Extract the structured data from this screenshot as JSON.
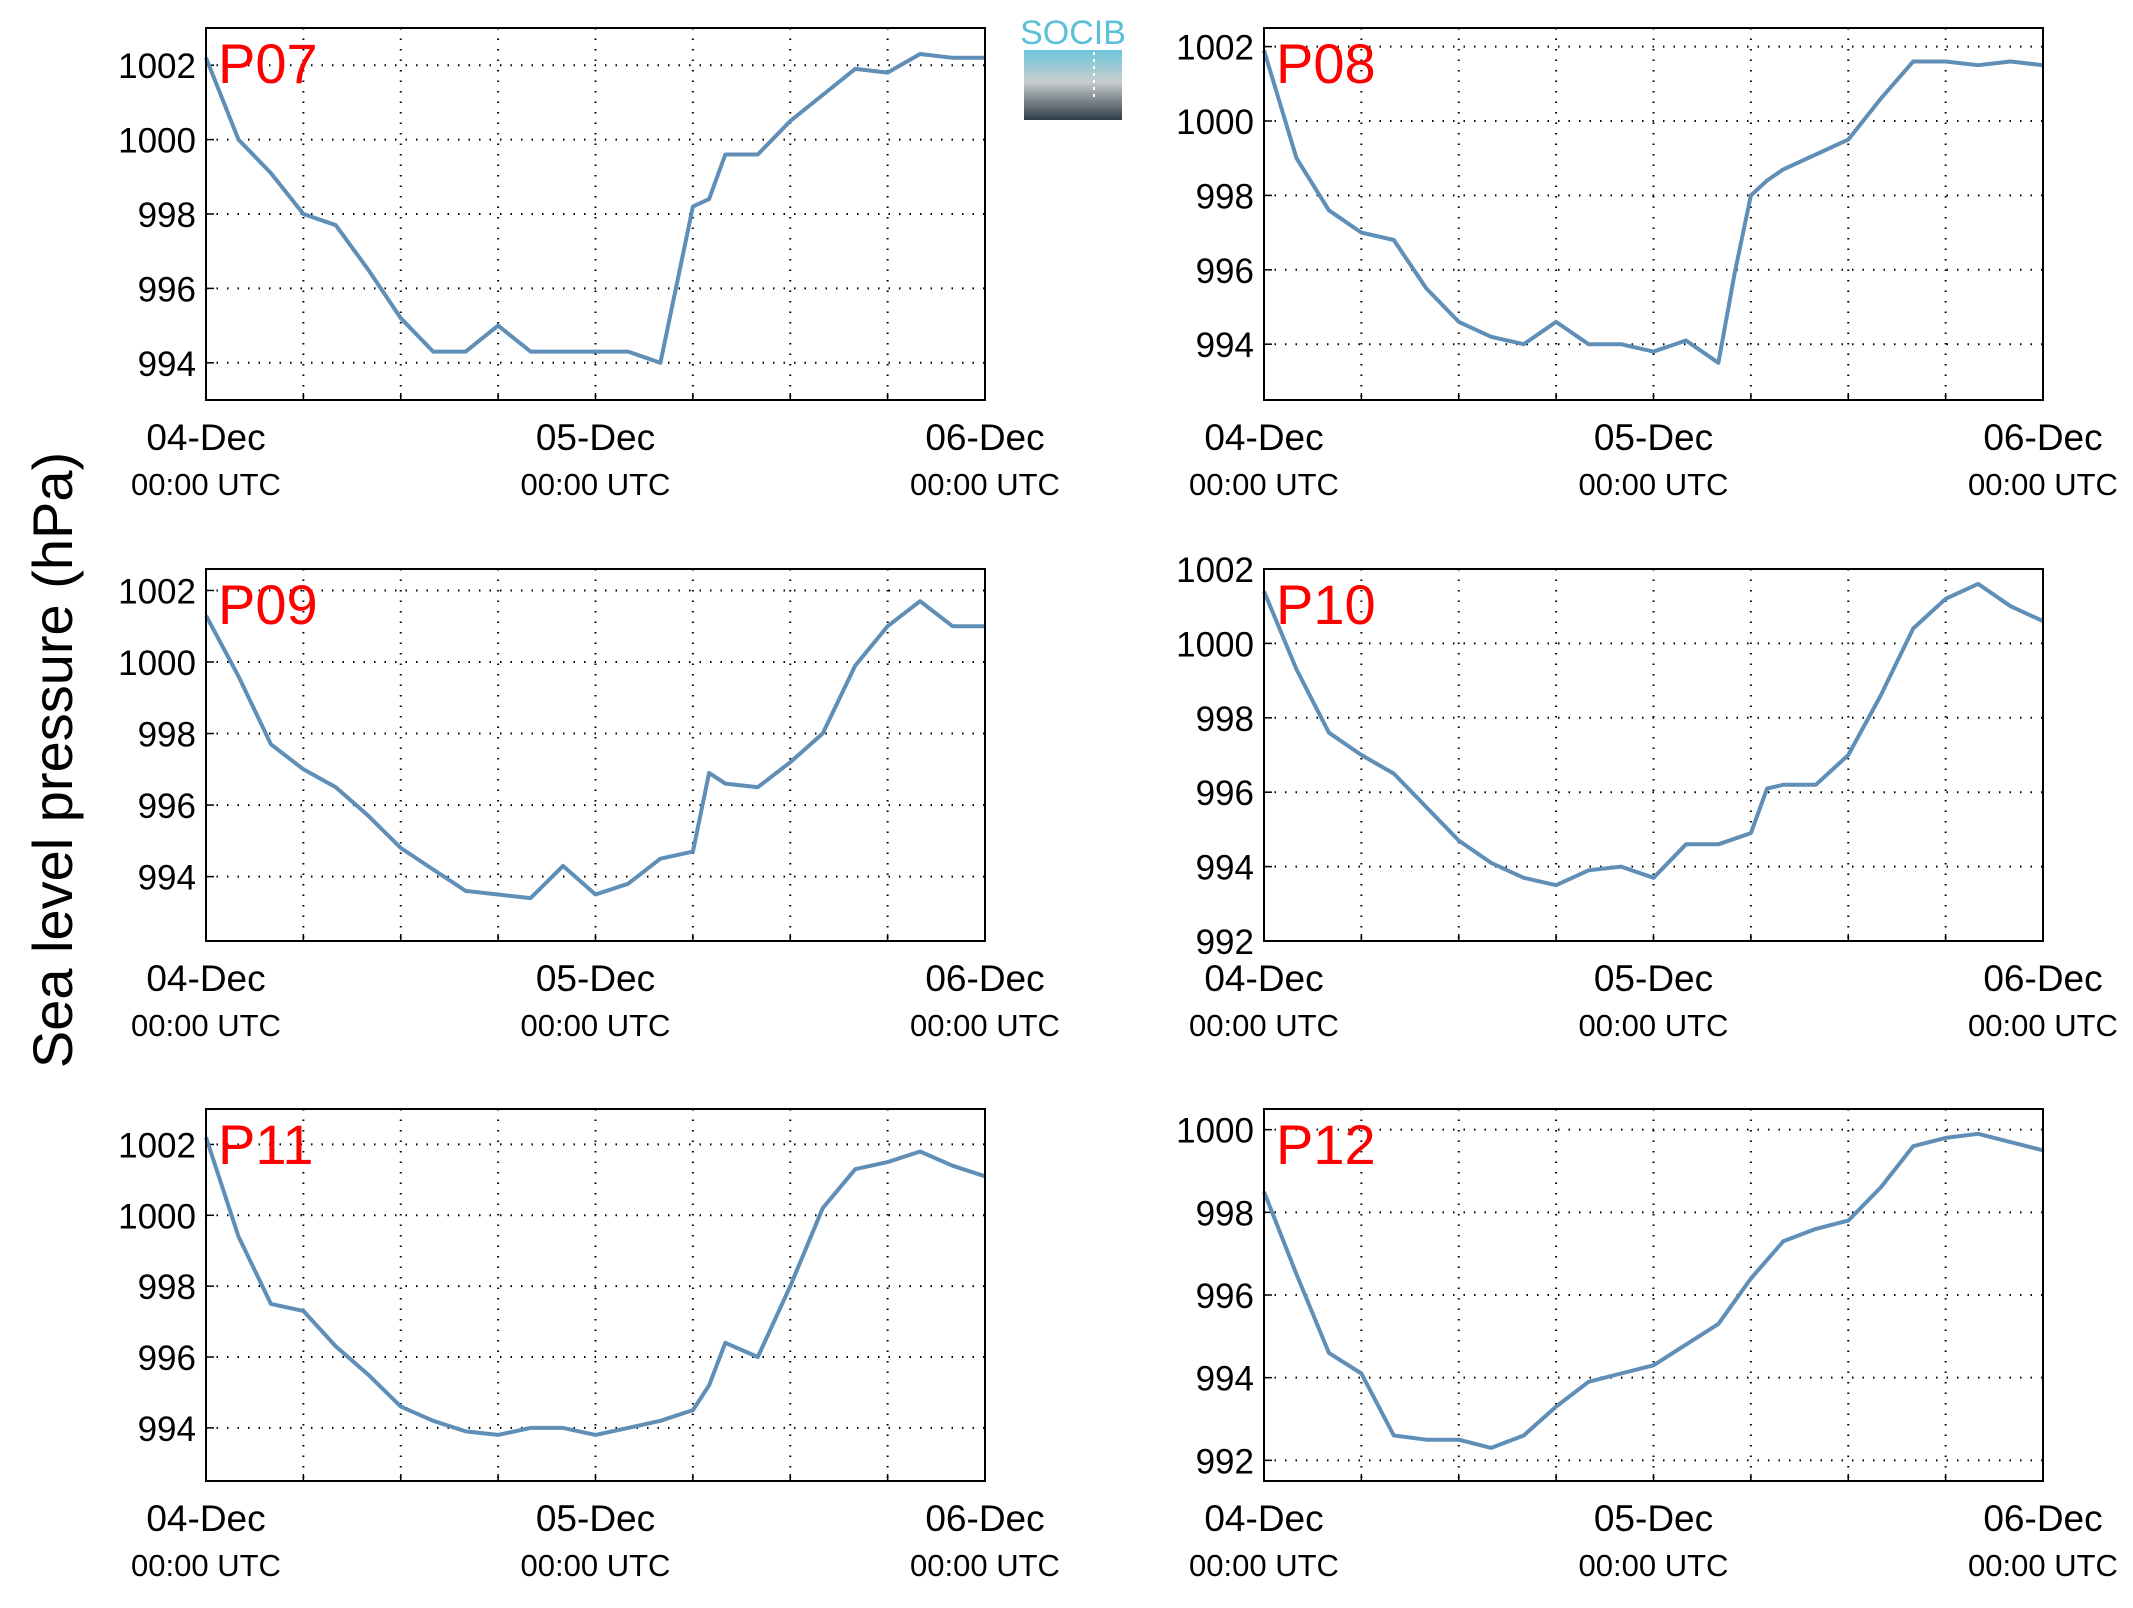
{
  "figure": {
    "ylabel": "Sea level pressure (hPa)",
    "logo_text": "SOCIB",
    "line_color": "#5F8EB7",
    "station_label_color": "#FF0000",
    "time_axis_labels": [
      {
        "date": "04-Dec",
        "time": "00:00 UTC"
      },
      {
        "date": "05-Dec",
        "time": "00:00 UTC"
      },
      {
        "date": "06-Dec",
        "time": "00:00 UTC"
      }
    ]
  },
  "chart_data": [
    {
      "type": "line",
      "title": "P07",
      "xlim": [
        "2013-12-04 00:00",
        "2013-12-06 00:00"
      ],
      "ylim": [
        993,
        1003
      ],
      "yticks": [
        994,
        996,
        998,
        1000,
        1002
      ],
      "grid": true,
      "x": [
        "04-Dec 00:00",
        "04-Dec 02:00",
        "04-Dec 04:00",
        "04-Dec 06:00",
        "04-Dec 08:00",
        "04-Dec 10:00",
        "04-Dec 12:00",
        "04-Dec 14:00",
        "04-Dec 16:00",
        "04-Dec 18:00",
        "04-Dec 20:00",
        "04-Dec 22:00",
        "05-Dec 00:00",
        "05-Dec 02:00",
        "05-Dec 04:00",
        "05-Dec 06:00",
        "05-Dec 07:00",
        "05-Dec 08:00",
        "05-Dec 10:00",
        "05-Dec 12:00",
        "05-Dec 14:00",
        "05-Dec 16:00",
        "05-Dec 18:00",
        "05-Dec 20:00",
        "05-Dec 22:00",
        "06-Dec 00:00"
      ],
      "values": [
        1002.2,
        1000.0,
        999.1,
        998.0,
        997.7,
        996.5,
        995.2,
        994.3,
        994.3,
        995.0,
        994.3,
        994.3,
        994.3,
        994.3,
        994.0,
        998.2,
        998.4,
        999.6,
        999.6,
        1000.5,
        1001.2,
        1001.9,
        1001.8,
        1002.3,
        1002.2,
        1002.2
      ]
    },
    {
      "type": "line",
      "title": "P08",
      "xlim": [
        "2013-12-04 00:00",
        "2013-12-06 00:00"
      ],
      "ylim": [
        992.5,
        1002.5
      ],
      "yticks": [
        994,
        996,
        998,
        1000,
        1002
      ],
      "grid": true,
      "x": [
        "04-Dec 00:00",
        "04-Dec 02:00",
        "04-Dec 04:00",
        "04-Dec 06:00",
        "04-Dec 08:00",
        "04-Dec 10:00",
        "04-Dec 12:00",
        "04-Dec 14:00",
        "04-Dec 16:00",
        "04-Dec 18:00",
        "04-Dec 20:00",
        "04-Dec 22:00",
        "05-Dec 00:00",
        "05-Dec 02:00",
        "05-Dec 04:00",
        "05-Dec 05:00",
        "05-Dec 06:00",
        "05-Dec 07:00",
        "05-Dec 08:00",
        "05-Dec 10:00",
        "05-Dec 12:00",
        "05-Dec 14:00",
        "05-Dec 16:00",
        "05-Dec 18:00",
        "05-Dec 20:00",
        "05-Dec 22:00",
        "06-Dec 00:00"
      ],
      "values": [
        1001.9,
        999.0,
        997.6,
        997.0,
        996.8,
        995.5,
        994.6,
        994.2,
        994.0,
        994.6,
        994.0,
        994.0,
        993.8,
        994.1,
        993.5,
        995.9,
        998.0,
        998.4,
        998.7,
        999.1,
        999.5,
        1000.6,
        1001.6,
        1001.6,
        1001.5,
        1001.6,
        1001.5
      ]
    },
    {
      "type": "line",
      "title": "P09",
      "xlim": [
        "2013-12-04 00:00",
        "2013-12-06 00:00"
      ],
      "ylim": [
        992.2,
        1002.6
      ],
      "yticks": [
        994,
        996,
        998,
        1000,
        1002
      ],
      "grid": true,
      "x": [
        "04-Dec 00:00",
        "04-Dec 02:00",
        "04-Dec 04:00",
        "04-Dec 06:00",
        "04-Dec 08:00",
        "04-Dec 10:00",
        "04-Dec 12:00",
        "04-Dec 14:00",
        "04-Dec 16:00",
        "04-Dec 18:00",
        "04-Dec 20:00",
        "04-Dec 22:00",
        "05-Dec 00:00",
        "05-Dec 02:00",
        "05-Dec 04:00",
        "05-Dec 06:00",
        "05-Dec 07:00",
        "05-Dec 08:00",
        "05-Dec 10:00",
        "05-Dec 12:00",
        "05-Dec 14:00",
        "05-Dec 16:00",
        "05-Dec 18:00",
        "05-Dec 20:00",
        "05-Dec 22:00",
        "06-Dec 00:00"
      ],
      "values": [
        1001.3,
        999.6,
        997.7,
        997.0,
        996.5,
        995.7,
        994.8,
        994.2,
        993.6,
        993.5,
        993.4,
        994.3,
        993.5,
        993.8,
        994.5,
        994.7,
        996.9,
        996.6,
        996.5,
        997.2,
        998.0,
        999.9,
        1001.0,
        1001.7,
        1001.0,
        1001.0
      ]
    },
    {
      "type": "line",
      "title": "P10",
      "xlim": [
        "2013-12-04 00:00",
        "2013-12-06 00:00"
      ],
      "ylim": [
        992,
        1002
      ],
      "yticks": [
        992,
        994,
        996,
        998,
        1000,
        1002
      ],
      "grid": true,
      "x": [
        "04-Dec 00:00",
        "04-Dec 02:00",
        "04-Dec 04:00",
        "04-Dec 06:00",
        "04-Dec 08:00",
        "04-Dec 10:00",
        "04-Dec 12:00",
        "04-Dec 14:00",
        "04-Dec 16:00",
        "04-Dec 18:00",
        "04-Dec 20:00",
        "04-Dec 22:00",
        "05-Dec 00:00",
        "05-Dec 02:00",
        "05-Dec 04:00",
        "05-Dec 06:00",
        "05-Dec 07:00",
        "05-Dec 08:00",
        "05-Dec 10:00",
        "05-Dec 12:00",
        "05-Dec 14:00",
        "05-Dec 16:00",
        "05-Dec 18:00",
        "05-Dec 20:00",
        "05-Dec 22:00",
        "06-Dec 00:00"
      ],
      "values": [
        1001.4,
        999.3,
        997.6,
        997.0,
        996.5,
        995.6,
        994.7,
        994.1,
        993.7,
        993.5,
        993.9,
        994.0,
        993.7,
        994.6,
        994.6,
        994.9,
        996.1,
        996.2,
        996.2,
        997.0,
        998.6,
        1000.4,
        1001.2,
        1001.6,
        1001.0,
        1000.6
      ]
    },
    {
      "type": "line",
      "title": "P11",
      "xlim": [
        "2013-12-04 00:00",
        "2013-12-06 00:00"
      ],
      "ylim": [
        992.5,
        1003
      ],
      "yticks": [
        994,
        996,
        998,
        1000,
        1002
      ],
      "grid": true,
      "x": [
        "04-Dec 00:00",
        "04-Dec 02:00",
        "04-Dec 04:00",
        "04-Dec 06:00",
        "04-Dec 08:00",
        "04-Dec 10:00",
        "04-Dec 12:00",
        "04-Dec 14:00",
        "04-Dec 16:00",
        "04-Dec 18:00",
        "04-Dec 20:00",
        "04-Dec 22:00",
        "05-Dec 00:00",
        "05-Dec 02:00",
        "05-Dec 04:00",
        "05-Dec 06:00",
        "05-Dec 07:00",
        "05-Dec 08:00",
        "05-Dec 10:00",
        "05-Dec 12:00",
        "05-Dec 14:00",
        "05-Dec 16:00",
        "05-Dec 18:00",
        "05-Dec 20:00",
        "05-Dec 22:00",
        "06-Dec 00:00"
      ],
      "values": [
        1002.2,
        999.4,
        997.5,
        997.3,
        996.3,
        995.5,
        994.6,
        994.2,
        993.9,
        993.8,
        994.0,
        994.0,
        993.8,
        994.0,
        994.2,
        994.5,
        995.2,
        996.4,
        996.0,
        998.0,
        1000.2,
        1001.3,
        1001.5,
        1001.8,
        1001.4,
        1001.1
      ]
    },
    {
      "type": "line",
      "title": "P12",
      "xlim": [
        "2013-12-04 00:00",
        "2013-12-06 00:00"
      ],
      "ylim": [
        991.5,
        1000.5
      ],
      "yticks": [
        992,
        994,
        996,
        998,
        1000
      ],
      "grid": true,
      "x": [
        "04-Dec 00:00",
        "04-Dec 02:00",
        "04-Dec 04:00",
        "04-Dec 06:00",
        "04-Dec 08:00",
        "04-Dec 10:00",
        "04-Dec 12:00",
        "04-Dec 14:00",
        "04-Dec 16:00",
        "04-Dec 18:00",
        "04-Dec 20:00",
        "04-Dec 22:00",
        "05-Dec 00:00",
        "05-Dec 02:00",
        "05-Dec 04:00",
        "05-Dec 06:00",
        "05-Dec 08:00",
        "05-Dec 10:00",
        "05-Dec 12:00",
        "05-Dec 14:00",
        "05-Dec 16:00",
        "05-Dec 18:00",
        "05-Dec 20:00",
        "05-Dec 22:00",
        "06-Dec 00:00"
      ],
      "values": [
        998.5,
        996.5,
        994.6,
        994.1,
        992.6,
        992.5,
        992.5,
        992.3,
        992.6,
        993.3,
        993.9,
        994.1,
        994.3,
        994.8,
        995.3,
        996.4,
        997.3,
        997.6,
        997.8,
        998.6,
        999.6,
        999.8,
        999.9,
        999.7,
        999.5
      ]
    }
  ]
}
